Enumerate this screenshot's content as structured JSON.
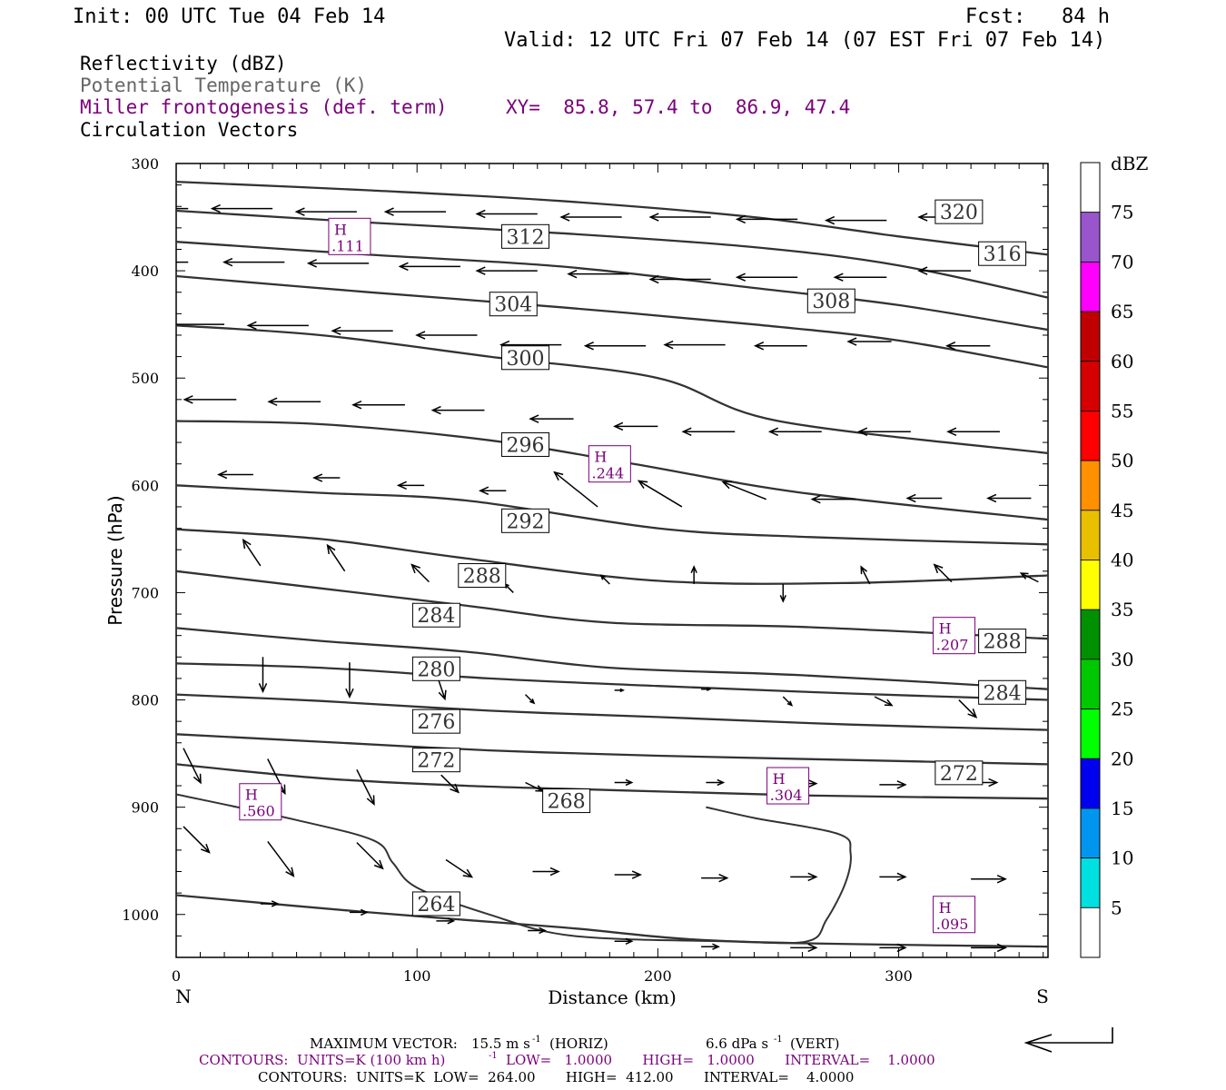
{
  "header": {
    "init": "Init: 00 UTC Tue 04 Feb 14",
    "fcst": "Fcst:   84 h",
    "valid": "Valid: 12 UTC Fri 07 Feb 14 (07 EST Fri 07 Feb 14)"
  },
  "fields": {
    "reflectivity": "Reflectivity (dBZ)",
    "theta": "Potential Temperature (K)",
    "miller": "Miller frontogenesis (def. term)",
    "xy": "XY=  85.8, 57.4 to  86.9, 47.4",
    "vectors": "Circulation Vectors"
  },
  "colors": {
    "theta": "#333333",
    "miller": "#7a007a",
    "text_gray": "#666666",
    "axis": "#000000"
  },
  "footer": {
    "max_vector_label": "MAXIMUM VECTOR:",
    "max_horiz": "15.5 m s",
    "max_horiz_unit": "-1",
    "horiz_tag": "(HORIZ)",
    "max_vert": "6.6 dPa s",
    "max_vert_unit": "-1",
    "vert_tag": "(VERT)",
    "contours_miller": "CONTOURS:  UNITS=K (100 km h)",
    "contours_miller_exp": "-1",
    "contours_miller_stats": "LOW=   1.0000       HIGH=   1.0000       INTERVAL=    1.0000",
    "contours_theta": "CONTOURS:  UNITS=K  LOW=  264.00       HIGH=  412.00       INTERVAL=    4.0000"
  },
  "chart_data": {
    "type": "line",
    "xlabel": "Distance (km)",
    "ylabel": "Pressure (hPa)",
    "xlim": [
      0,
      362
    ],
    "ylim": [
      1040,
      300
    ],
    "x_ticks": [
      0,
      100,
      200,
      300
    ],
    "y_ticks": [
      300,
      400,
      500,
      600,
      700,
      800,
      900,
      1000
    ],
    "left_end_label": "N",
    "right_end_label": "S",
    "theta_contours": [
      {
        "level": 264,
        "points": [
          [
            0,
            982
          ],
          [
            80,
            998
          ],
          [
            160,
            1012
          ],
          [
            230,
            1025
          ],
          [
            362,
            1030
          ]
        ]
      },
      {
        "level": 268,
        "points": [
          [
            0,
            860
          ],
          [
            60,
            873
          ],
          [
            120,
            880
          ],
          [
            180,
            884
          ],
          [
            260,
            889
          ],
          [
            362,
            892
          ]
        ]
      },
      {
        "level": 272,
        "points": [
          [
            0,
            832
          ],
          [
            60,
            839
          ],
          [
            130,
            847
          ],
          [
            200,
            852
          ],
          [
            280,
            856
          ],
          [
            362,
            860
          ]
        ]
      },
      {
        "level": 276,
        "points": [
          [
            0,
            795
          ],
          [
            60,
            801
          ],
          [
            130,
            810
          ],
          [
            200,
            816
          ],
          [
            280,
            823
          ],
          [
            362,
            828
          ]
        ]
      },
      {
        "level": 280,
        "points": [
          [
            0,
            766
          ],
          [
            60,
            770
          ],
          [
            130,
            780
          ],
          [
            200,
            787
          ],
          [
            280,
            794
          ],
          [
            362,
            800
          ]
        ]
      },
      {
        "level": 284,
        "points": [
          [
            0,
            733
          ],
          [
            60,
            745
          ],
          [
            120,
            755
          ],
          [
            180,
            770
          ],
          [
            260,
            777
          ],
          [
            362,
            790
          ]
        ]
      },
      {
        "level": 288,
        "points": [
          [
            0,
            680
          ],
          [
            60,
            696
          ],
          [
            120,
            712
          ],
          [
            180,
            728
          ],
          [
            260,
            732
          ],
          [
            362,
            743
          ]
        ]
      },
      {
        "level": 292,
        "points": [
          [
            0,
            641
          ],
          [
            60,
            650
          ],
          [
            120,
            668
          ],
          [
            200,
            689
          ],
          [
            280,
            691
          ],
          [
            362,
            684
          ]
        ]
      },
      {
        "level": 296,
        "points": [
          [
            0,
            600
          ],
          [
            60,
            607
          ],
          [
            120,
            614
          ],
          [
            200,
            640
          ],
          [
            260,
            648
          ],
          [
            362,
            655
          ]
        ]
      },
      {
        "level": 300,
        "points": [
          [
            0,
            540
          ],
          [
            60,
            543
          ],
          [
            130,
            558
          ],
          [
            190,
            580
          ],
          [
            260,
            607
          ],
          [
            362,
            632
          ]
        ]
      },
      {
        "level": 304,
        "points": [
          [
            0,
            451
          ],
          [
            60,
            460
          ],
          [
            130,
            480
          ],
          [
            200,
            500
          ],
          [
            250,
            540
          ],
          [
            362,
            570
          ]
        ]
      },
      {
        "level": 308,
        "points": [
          [
            0,
            405
          ],
          [
            80,
            420
          ],
          [
            160,
            434
          ],
          [
            240,
            450
          ],
          [
            300,
            465
          ],
          [
            362,
            490
          ]
        ]
      },
      {
        "level": 312,
        "points": [
          [
            0,
            373
          ],
          [
            80,
            385
          ],
          [
            160,
            396
          ],
          [
            240,
            416
          ],
          [
            300,
            432
          ],
          [
            362,
            455
          ]
        ]
      },
      {
        "level": 316,
        "points": [
          [
            0,
            344
          ],
          [
            80,
            355
          ],
          [
            160,
            365
          ],
          [
            240,
            378
          ],
          [
            300,
            395
          ],
          [
            362,
            425
          ]
        ]
      },
      {
        "level": 320,
        "points": [
          [
            0,
            317
          ],
          [
            80,
            325
          ],
          [
            160,
            335
          ],
          [
            240,
            350
          ],
          [
            300,
            368
          ],
          [
            362,
            385
          ]
        ]
      }
    ],
    "theta_labels": [
      {
        "text": "312",
        "x": 145,
        "p": 368
      },
      {
        "text": "304",
        "x": 140,
        "p": 431
      },
      {
        "text": "300",
        "x": 145,
        "p": 481
      },
      {
        "text": "296",
        "x": 145,
        "p": 562
      },
      {
        "text": "292",
        "x": 145,
        "p": 633
      },
      {
        "text": "288",
        "x": 127,
        "p": 684
      },
      {
        "text": "284",
        "x": 108,
        "p": 721
      },
      {
        "text": "280",
        "x": 108,
        "p": 771
      },
      {
        "text": "276",
        "x": 108,
        "p": 820
      },
      {
        "text": "272",
        "x": 108,
        "p": 856
      },
      {
        "text": "268",
        "x": 162,
        "p": 894
      },
      {
        "text": "264",
        "x": 108,
        "p": 990
      },
      {
        "text": "320",
        "x": 325,
        "p": 345
      },
      {
        "text": "316",
        "x": 343,
        "p": 384
      },
      {
        "text": "308",
        "x": 272,
        "p": 428
      },
      {
        "text": "288",
        "x": 343,
        "p": 745
      },
      {
        "text": "284",
        "x": 343,
        "p": 793
      },
      {
        "text": "272",
        "x": 325,
        "p": 868
      }
    ],
    "miller_contour": {
      "level": 1,
      "points": [
        [
          0,
          888
        ],
        [
          50,
          912
        ],
        [
          82,
          931
        ],
        [
          90,
          952
        ],
        [
          100,
          975
        ],
        [
          130,
          1000
        ],
        [
          165,
          1020
        ],
        [
          230,
          1025
        ],
        [
          262,
          1025
        ],
        [
          270,
          1005
        ],
        [
          278,
          970
        ],
        [
          280,
          942
        ],
        [
          275,
          925
        ],
        [
          240,
          910
        ],
        [
          220,
          900
        ]
      ]
    },
    "miller_maxima": [
      {
        "label": "H",
        "value": ".111",
        "x": 72,
        "p": 368
      },
      {
        "label": "H",
        "value": ".244",
        "x": 180,
        "p": 580
      },
      {
        "label": "H",
        "value": ".207",
        "x": 323,
        "p": 740
      },
      {
        "label": "H",
        "value": ".304",
        "x": 254,
        "p": 880
      },
      {
        "label": "H",
        "value": ".560",
        "x": 35,
        "p": 895
      },
      {
        "label": "H",
        "value": ".095",
        "x": 323,
        "p": 1000
      }
    ],
    "vectors": [
      [
        5,
        342,
        -7,
        0
      ],
      [
        40,
        342,
        -7,
        0
      ],
      [
        75,
        345,
        -7,
        0
      ],
      [
        112,
        345,
        -7,
        0
      ],
      [
        150,
        347,
        -7,
        0
      ],
      [
        185,
        350,
        -7,
        0
      ],
      [
        222,
        350,
        -7,
        0
      ],
      [
        258,
        352,
        -7,
        0
      ],
      [
        295,
        353,
        -7,
        0
      ],
      [
        330,
        350,
        -6,
        0
      ],
      [
        5,
        392,
        -7,
        0
      ],
      [
        45,
        392,
        -7,
        0
      ],
      [
        80,
        393,
        -7,
        0
      ],
      [
        118,
        396,
        -7,
        0
      ],
      [
        150,
        400,
        -7,
        0
      ],
      [
        188,
        403,
        -7,
        0
      ],
      [
        222,
        408,
        -7,
        0
      ],
      [
        258,
        406,
        -7,
        0
      ],
      [
        295,
        406,
        -6,
        0
      ],
      [
        330,
        400,
        -6,
        0
      ],
      [
        20,
        450,
        -7,
        0
      ],
      [
        55,
        451,
        -7,
        0
      ],
      [
        90,
        456,
        -7,
        0
      ],
      [
        125,
        460,
        -7,
        0
      ],
      [
        160,
        469,
        -7,
        0
      ],
      [
        195,
        470,
        -7,
        0
      ],
      [
        228,
        469,
        -7,
        0
      ],
      [
        262,
        470,
        -6,
        0
      ],
      [
        297,
        466,
        -5,
        0
      ],
      [
        338,
        470,
        -5,
        0
      ],
      [
        25,
        520,
        -6,
        0
      ],
      [
        60,
        522,
        -6,
        0
      ],
      [
        95,
        525,
        -6,
        0
      ],
      [
        128,
        530,
        -6,
        0
      ],
      [
        165,
        538,
        -5,
        0
      ],
      [
        200,
        545,
        -5,
        0
      ],
      [
        232,
        550,
        -6,
        0
      ],
      [
        268,
        550,
        -6,
        0
      ],
      [
        305,
        550,
        -6,
        0
      ],
      [
        342,
        550,
        -6,
        0
      ],
      [
        32,
        590,
        -4,
        0
      ],
      [
        68,
        593,
        -3,
        0
      ],
      [
        103,
        600,
        -3,
        0
      ],
      [
        137,
        605,
        -3,
        0
      ],
      [
        175,
        620,
        -5,
        -4
      ],
      [
        210,
        620,
        -5,
        -3
      ],
      [
        245,
        613,
        -5,
        -2
      ],
      [
        282,
        613,
        -5,
        0
      ],
      [
        318,
        612,
        -4,
        0
      ],
      [
        355,
        612,
        -5,
        0
      ],
      [
        35,
        675,
        -2,
        -3
      ],
      [
        70,
        680,
        -2,
        -3
      ],
      [
        105,
        690,
        -2,
        -2
      ],
      [
        140,
        700,
        -1,
        -1
      ],
      [
        180,
        692,
        -1,
        -1
      ],
      [
        215,
        692,
        0,
        -2
      ],
      [
        252,
        692,
        0,
        2
      ],
      [
        288,
        692,
        -1,
        -2
      ],
      [
        322,
        690,
        -2,
        -2
      ],
      [
        358,
        690,
        -2,
        -1
      ],
      [
        36,
        760,
        0,
        4
      ],
      [
        72,
        765,
        0,
        4
      ],
      [
        108,
        775,
        1,
        3
      ],
      [
        145,
        795,
        1,
        1
      ],
      [
        182,
        791,
        1,
        0
      ],
      [
        218,
        790,
        1,
        0
      ],
      [
        252,
        797,
        1,
        1
      ],
      [
        290,
        797,
        2,
        1
      ],
      [
        325,
        800,
        2,
        2
      ],
      [
        3,
        845,
        2,
        4
      ],
      [
        38,
        855,
        2,
        4
      ],
      [
        75,
        865,
        2,
        4
      ],
      [
        110,
        870,
        2,
        2
      ],
      [
        145,
        877,
        2,
        1
      ],
      [
        182,
        877,
        2,
        0
      ],
      [
        220,
        877,
        2,
        0
      ],
      [
        255,
        878,
        3,
        0
      ],
      [
        292,
        879,
        3,
        0
      ],
      [
        330,
        877,
        3,
        0
      ],
      [
        3,
        918,
        3,
        3
      ],
      [
        38,
        932,
        3,
        4
      ],
      [
        75,
        933,
        3,
        3
      ],
      [
        112,
        949,
        3,
        2
      ],
      [
        148,
        960,
        3,
        0
      ],
      [
        182,
        963,
        3,
        0
      ],
      [
        218,
        966,
        3,
        0
      ],
      [
        255,
        965,
        3,
        0
      ],
      [
        292,
        965,
        3,
        0
      ],
      [
        330,
        967,
        4,
        0
      ],
      [
        35,
        990,
        2,
        0
      ],
      [
        72,
        998,
        2,
        0
      ],
      [
        108,
        1006,
        2,
        0
      ],
      [
        146,
        1015,
        2,
        0
      ],
      [
        182,
        1025,
        2,
        0
      ],
      [
        218,
        1030,
        2,
        0
      ],
      [
        255,
        1031,
        3,
        0
      ],
      [
        292,
        1031,
        3,
        0
      ],
      [
        330,
        1031,
        4,
        0
      ]
    ],
    "colorbar": {
      "title": "dBZ",
      "ticks": [
        "5",
        "10",
        "15",
        "20",
        "25",
        "30",
        "35",
        "40",
        "45",
        "50",
        "55",
        "60",
        "65",
        "70",
        "75"
      ],
      "colors": [
        "#ffffff",
        "#00e0e0",
        "#0096f0",
        "#0000f0",
        "#00ff00",
        "#00c800",
        "#009000",
        "#ffff00",
        "#e8c000",
        "#ff9000",
        "#ff0000",
        "#d60000",
        "#c00000",
        "#ff00ff",
        "#9955cc",
        "#ffffff"
      ]
    }
  }
}
